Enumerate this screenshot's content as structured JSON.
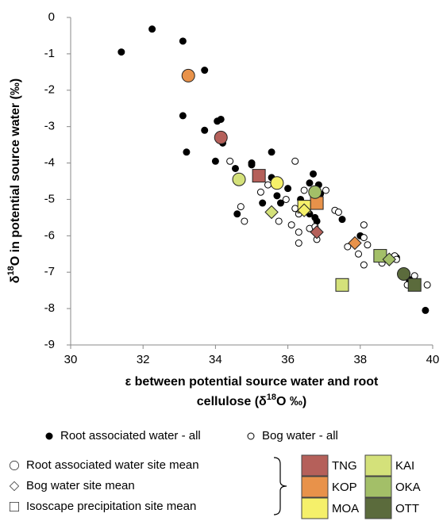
{
  "chart_data": {
    "type": "scatter",
    "xlabel": {
      "line1": "ε between potential source water and root",
      "pre": "cellulose (δ",
      "sup": "18",
      "post": "O ‰)"
    },
    "ylabel": {
      "pre": "δ",
      "sup": "18",
      "post": "O in potential source water (‰)"
    },
    "xlim": [
      30,
      40
    ],
    "xticks": [
      30,
      32,
      34,
      36,
      38,
      40
    ],
    "ylim": [
      -9,
      0
    ],
    "yticks": [
      0,
      -1,
      -2,
      -3,
      -4,
      -5,
      -6,
      -7,
      -8,
      -9
    ],
    "series": [
      {
        "name": "Root associated water - all",
        "marker": "dot",
        "color": "#000000",
        "x": [
          31.4,
          32.25,
          33.1,
          33.7,
          33.1,
          34.05,
          34.15,
          33.7,
          34.2,
          33.2,
          34.0,
          34.55,
          35.0,
          35.0,
          35.55,
          35.55,
          36.0,
          35.7,
          35.8,
          35.3,
          34.6,
          36.35,
          36.7,
          36.6,
          36.85,
          36.7,
          36.9,
          37.5,
          36.5,
          36.6,
          36.75,
          36.8,
          37.9,
          38.0,
          39.0,
          39.35,
          39.8,
          39.2
        ],
        "values": [
          -0.95,
          -0.32,
          -0.65,
          -1.45,
          -2.7,
          -2.85,
          -2.8,
          -3.1,
          -3.45,
          -3.7,
          -3.95,
          -4.15,
          -4.0,
          -4.05,
          -3.7,
          -4.4,
          -4.7,
          -4.9,
          -5.1,
          -5.1,
          -5.4,
          -5.0,
          -4.3,
          -4.55,
          -4.6,
          -4.75,
          -4.85,
          -5.55,
          -5.15,
          -5.4,
          -5.5,
          -5.6,
          -6.2,
          -6.0,
          -6.6,
          -7.2,
          -8.05,
          -7.1
        ]
      },
      {
        "name": "Bog water - all",
        "marker": "open",
        "color": "#000000",
        "x": [
          34.4,
          34.7,
          34.8,
          35.25,
          35.45,
          35.75,
          35.95,
          36.1,
          36.2,
          36.2,
          36.3,
          36.3,
          36.3,
          36.45,
          36.6,
          36.8,
          36.75,
          36.8,
          37.05,
          37.3,
          37.4,
          37.65,
          37.95,
          38.1,
          38.1,
          38.1,
          38.2,
          38.6,
          38.95,
          39.0,
          39.3,
          39.5,
          39.85
        ],
        "values": [
          -3.95,
          -5.2,
          -5.6,
          -4.8,
          -4.6,
          -5.6,
          -5.0,
          -5.7,
          -3.95,
          -5.25,
          -5.4,
          -5.9,
          -6.2,
          -4.75,
          -5.8,
          -4.85,
          -5.75,
          -6.1,
          -4.75,
          -5.3,
          -5.35,
          -6.3,
          -6.5,
          -5.7,
          -6.05,
          -6.8,
          -6.25,
          -6.75,
          -6.55,
          -6.65,
          -7.35,
          -7.1,
          -7.35
        ]
      }
    ],
    "mean_groups": [
      {
        "name": "Root associated water site mean",
        "marker": "circle",
        "x": [
          33.25,
          34.15,
          34.65,
          35.7,
          36.75,
          39.2
        ],
        "values": [
          -1.6,
          -3.3,
          -4.45,
          -4.55,
          -4.8,
          -7.05
        ],
        "colors": [
          "#e8924a",
          "#b5605a",
          "#d4e17a",
          "#f5f06a",
          "#a3bf68",
          "#5b6b3c"
        ]
      },
      {
        "name": "Bog water site mean",
        "marker": "diamond",
        "x": [
          35.55,
          36.45,
          36.8,
          37.85,
          38.8
        ],
        "values": [
          -5.35,
          -5.3,
          -5.9,
          -6.2,
          -6.65
        ],
        "colors": [
          "#d4e17a",
          "#f5f06a",
          "#b5605a",
          "#e8924a",
          "#a3bf68"
        ]
      },
      {
        "name": "Isoscape precipitation site mean",
        "marker": "square",
        "x": [
          35.2,
          36.8,
          36.45,
          37.5,
          38.55,
          39.5
        ],
        "values": [
          -4.35,
          -5.1,
          -5.2,
          -7.35,
          -6.55,
          -7.35
        ],
        "colors": [
          "#b5605a",
          "#e8924a",
          "#f5f06a",
          "#d4e17a",
          "#a3bf68",
          "#5b6b3c"
        ]
      }
    ],
    "sites": [
      {
        "name": "TNG",
        "color": "#b5605a"
      },
      {
        "name": "KOP",
        "color": "#e8924a"
      },
      {
        "name": "MOA",
        "color": "#f5f06a"
      },
      {
        "name": "KAI",
        "color": "#d4e17a"
      },
      {
        "name": "OKA",
        "color": "#a3bf68"
      },
      {
        "name": "OTT",
        "color": "#5b6b3c"
      }
    ]
  }
}
